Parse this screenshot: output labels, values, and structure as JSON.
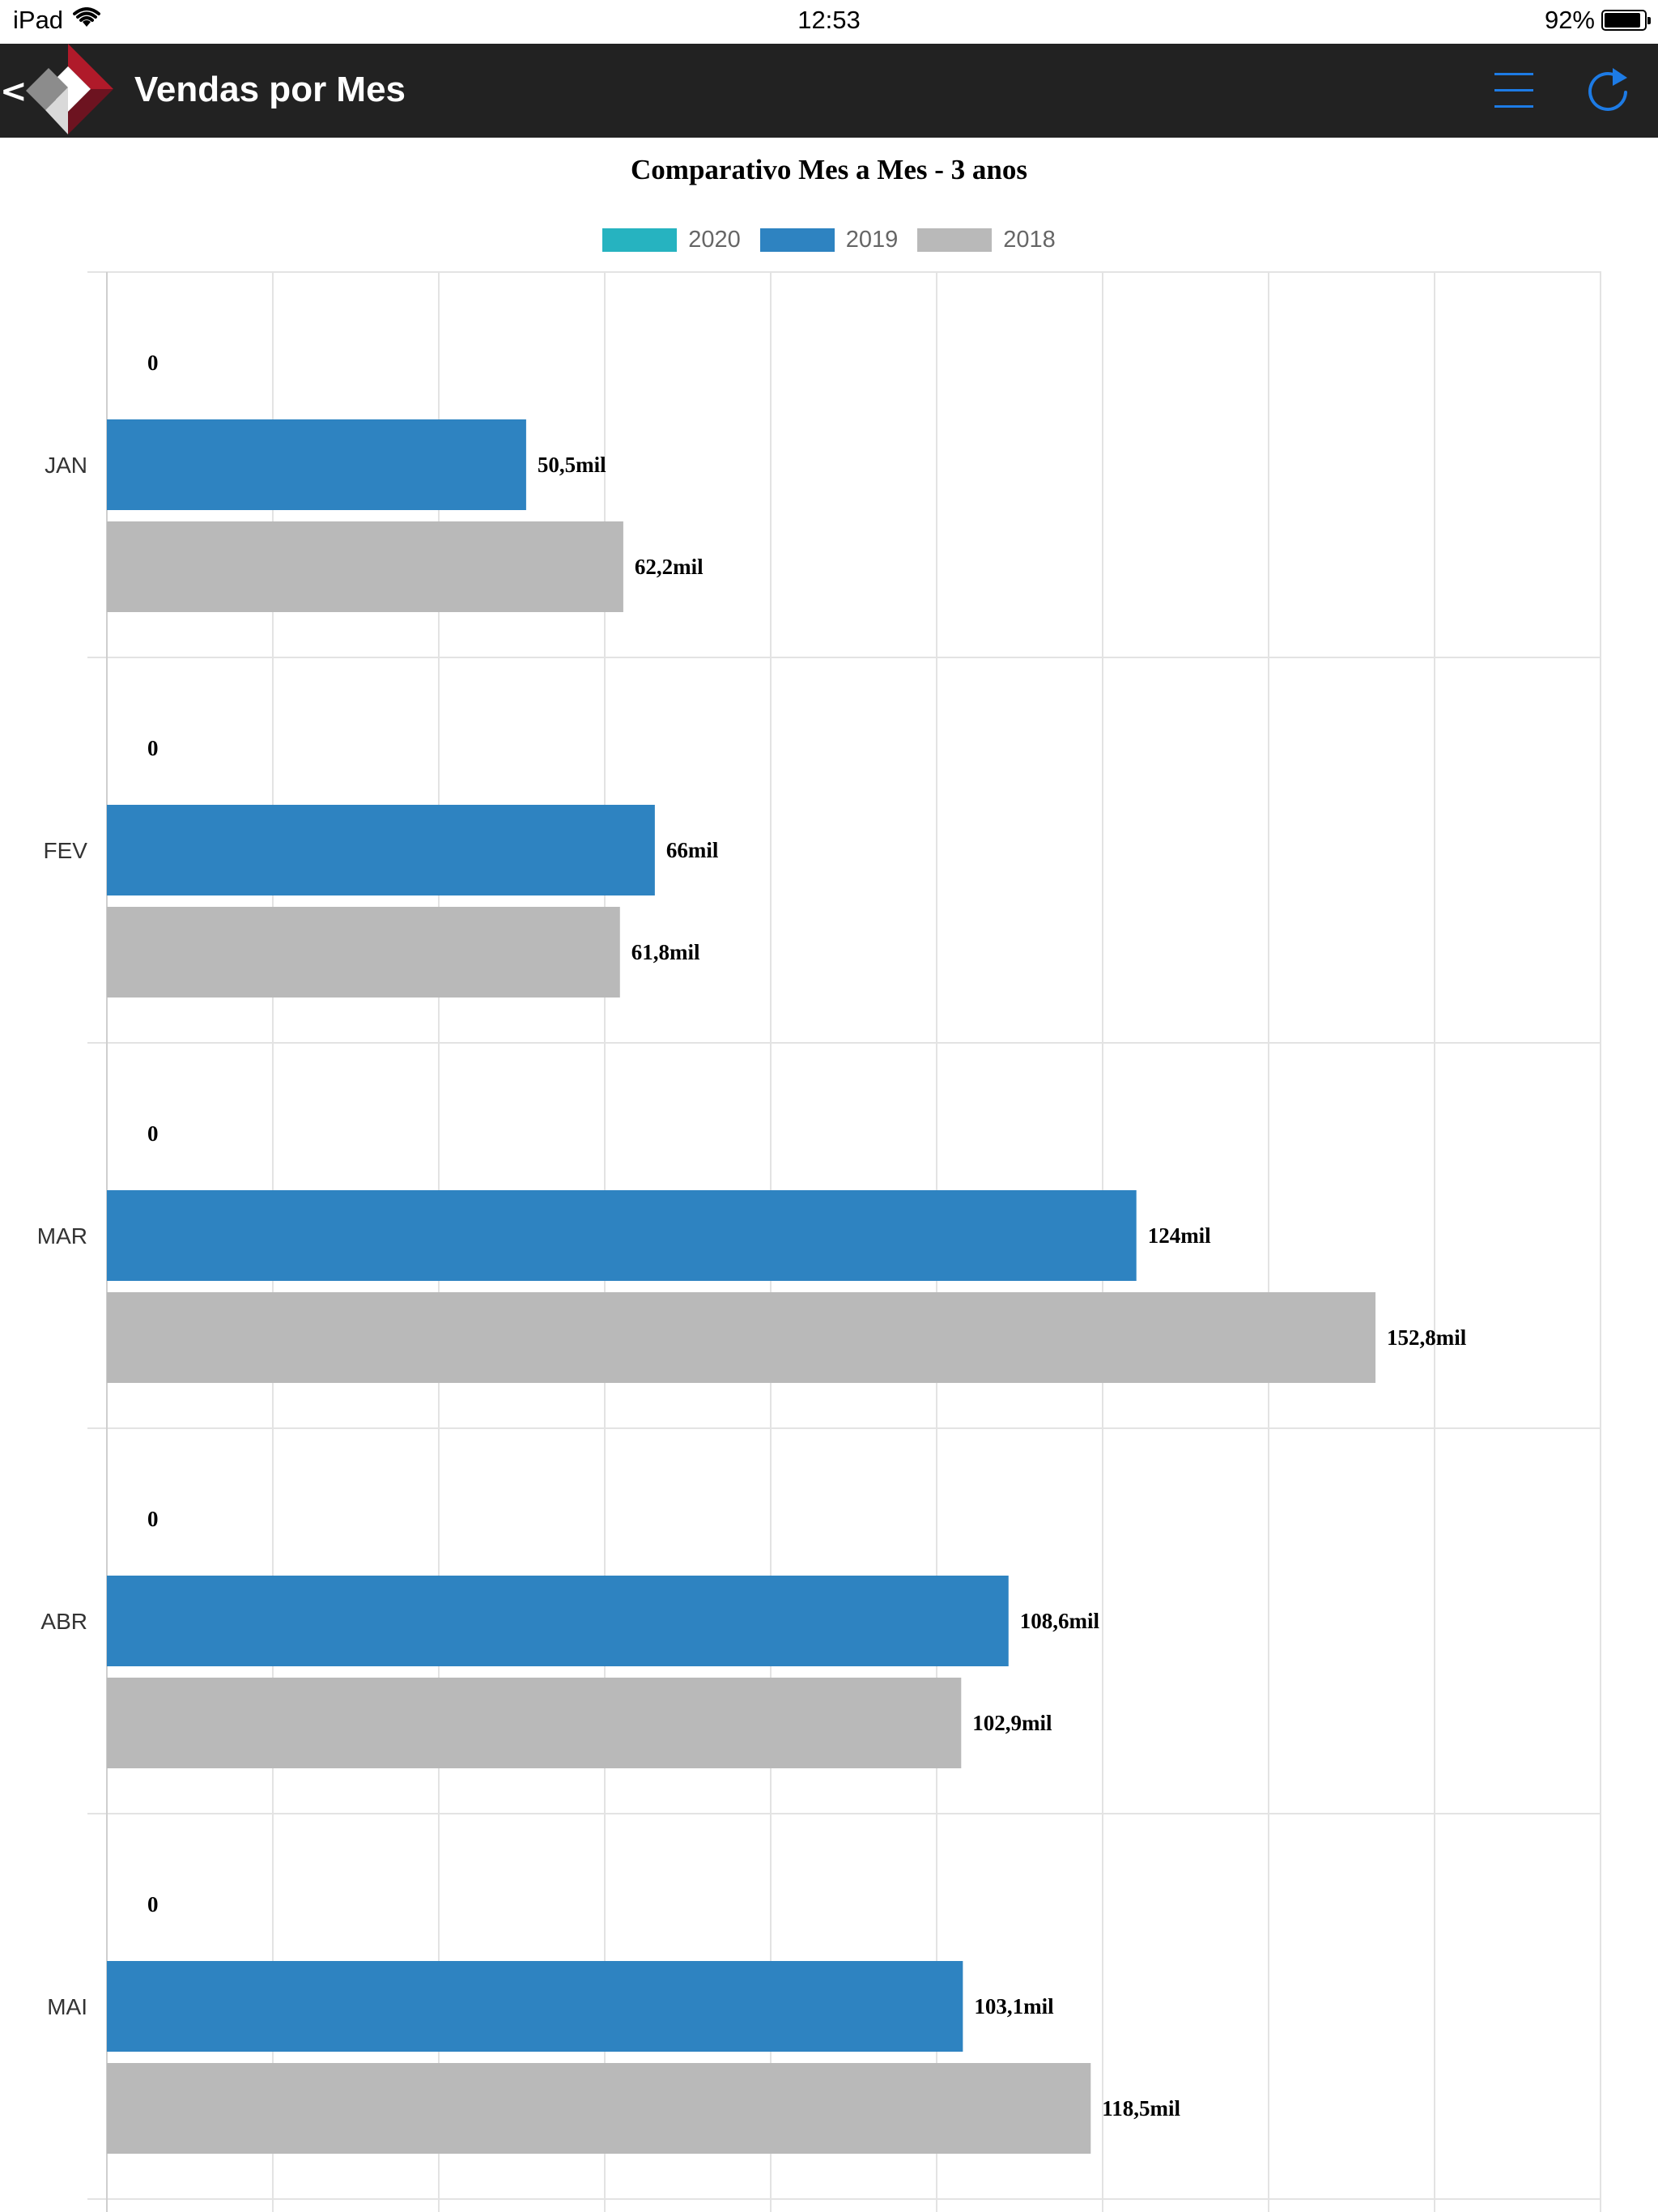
{
  "status_bar": {
    "device": "iPad",
    "time": "12:53",
    "battery": "92%",
    "battery_level": 0.92
  },
  "nav": {
    "back_label": "<",
    "title": "Vendas por Mes",
    "accent_color": "#1d7be5"
  },
  "chart_data": {
    "type": "bar",
    "orientation": "horizontal",
    "title": "Comparativo Mes a Mes - 3 anos",
    "categories": [
      "JAN",
      "FEV",
      "MAR",
      "ABR",
      "MAI"
    ],
    "series": [
      {
        "name": "2020",
        "color": "#26b3c0",
        "values": [
          0,
          0,
          0,
          0,
          0
        ],
        "labels": [
          "0",
          "0",
          "0",
          "0",
          "0"
        ]
      },
      {
        "name": "2019",
        "color": "#2e83c1",
        "values": [
          50.5,
          66,
          124,
          108.6,
          103.1
        ],
        "labels": [
          "50,5mil",
          "66mil",
          "124mil",
          "108,6mil",
          "103,1mil"
        ]
      },
      {
        "name": "2018",
        "color": "#b9b9b9",
        "values": [
          62.2,
          61.8,
          152.8,
          102.9,
          118.5
        ],
        "labels": [
          "62,2mil",
          "61,8mil",
          "152,8mil",
          "102,9mil",
          "118,5mil"
        ]
      }
    ],
    "xlim": [
      0,
      180
    ],
    "unit": "mil",
    "grid": true,
    "legend_position": "top"
  }
}
